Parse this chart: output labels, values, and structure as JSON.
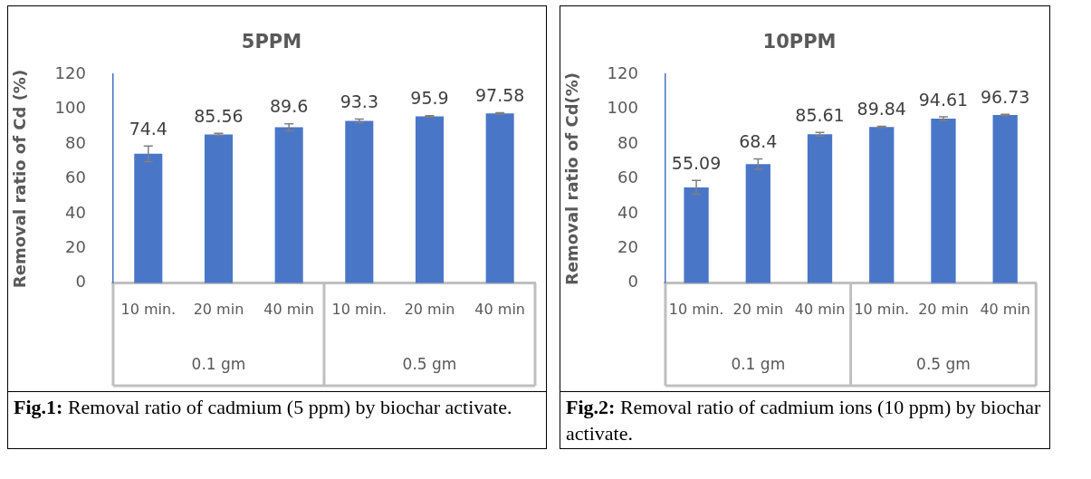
{
  "chart_data": [
    {
      "type": "bar",
      "title": "5PPM",
      "ylabel": "Removal ratio of Cd (%)",
      "categories": [
        "10 min.",
        "20 min",
        "40 min",
        "10 min.",
        "20 min",
        "40 min"
      ],
      "values": [
        74.4,
        85.56,
        89.6,
        93.3,
        95.9,
        97.58
      ],
      "errors": [
        4.5,
        0.6,
        2,
        1,
        0.4,
        0.4
      ],
      "color": "#4a76c8",
      "ylim": [
        0,
        120
      ],
      "yticks": [
        0,
        20,
        40,
        60,
        80,
        100,
        120
      ],
      "data_labels": true,
      "annotations": [
        "0.1 gm",
        "0.5 gm",
        "Fig.1: Removal ratio of cadmium (5 ppm) by biochar activate."
      ]
    },
    {
      "type": "bar",
      "title": "10PPM",
      "ylabel": "Removal ratio of Cd(%)",
      "categories": [
        "10 min.",
        "20 min",
        "40 min",
        "10 min.",
        "20 min",
        "40 min"
      ],
      "values": [
        55.09,
        68.4,
        85.61,
        89.84,
        94.61,
        96.73
      ],
      "errors": [
        4,
        3,
        1,
        0.3,
        1,
        0.4
      ],
      "color": "#4a76c8",
      "ylim": [
        0,
        120
      ],
      "yticks": [
        0,
        20,
        40,
        60,
        80,
        100,
        120
      ],
      "data_labels": true,
      "annotations": [
        "0.1 gm",
        "0.5 gm",
        "Fig.2: Removal ratio of cadmium ions (10 ppm) by biochar activate."
      ]
    }
  ]
}
